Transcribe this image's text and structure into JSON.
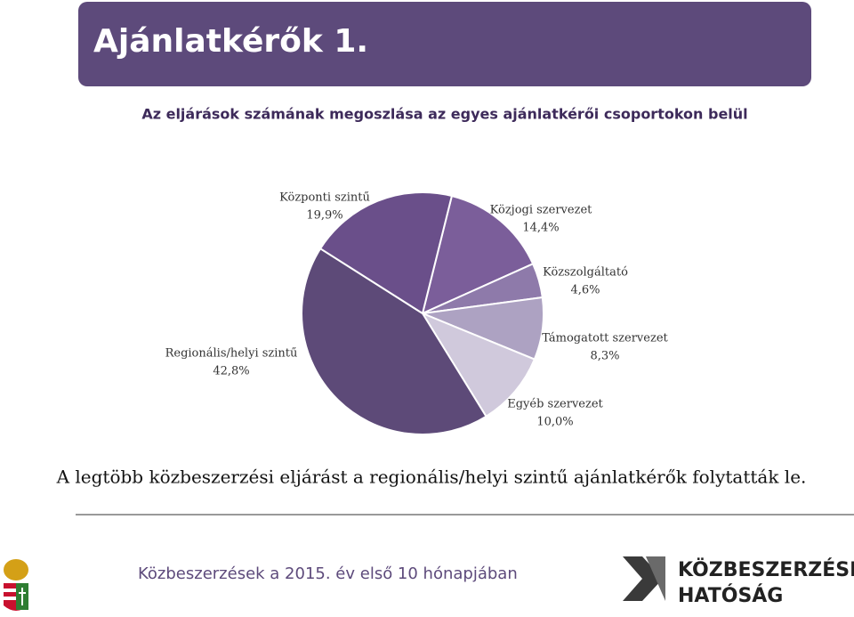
{
  "slide": {
    "header": "Ajánlatkérők 1.",
    "summary": "A legtöbb közbeszerzési eljárást a regionális/helyi szintű ajánlatkérők folytatták le.",
    "footer": "Közbeszerzések a 2015. év első 10 hónapjában",
    "logo_line1": "KÖZBESZERZÉSI",
    "logo_line2": "HATÓSÁG"
  },
  "chart_data": {
    "type": "pie",
    "title": "Az eljárások számának megoszlása az egyes ajánlatkérői csoportokon belül",
    "categories": [
      "Közjogi szervezet",
      "Közszolgáltató",
      "Támogatott szervezet",
      "Egyéb szervezet",
      "Regionális/helyi szintű",
      "Központi szintű"
    ],
    "values": [
      14.4,
      4.6,
      8.3,
      10.0,
      42.8,
      19.9
    ],
    "value_labels": [
      "14,4%",
      "4,6%",
      "8,3%",
      "10,0%",
      "42,8%",
      "19,9%"
    ],
    "colors": [
      "#7b5e9a",
      "#8e7aaa",
      "#ada2c2",
      "#d0c9dc",
      "#5d4a78",
      "#6a4f8a"
    ]
  }
}
